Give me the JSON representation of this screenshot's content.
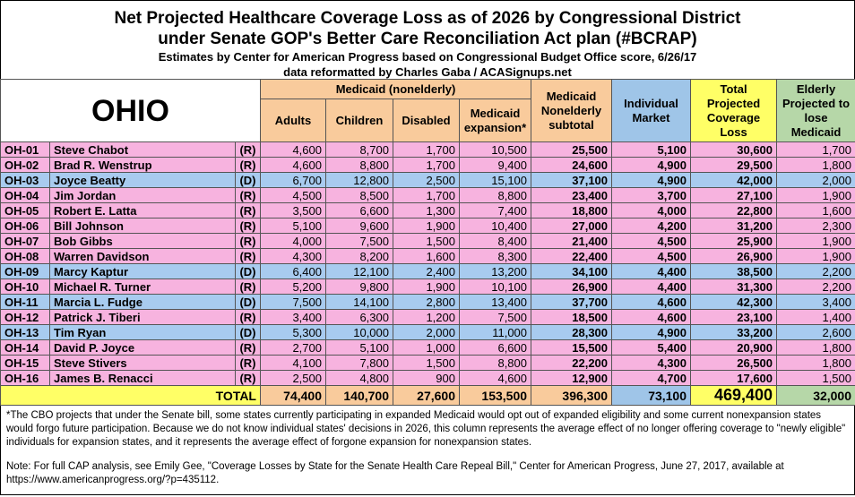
{
  "header": {
    "title_lines": [
      "Net Projected Healthcare Coverage Loss as of 2026 by Congressional District",
      "under Senate GOP's Better Care Reconciliation Act plan (#BCRAP)",
      "Estimates by Center for American Progress based on Congressional Budget Office score, 6/26/17",
      "data reformatted by Charles Gaba / ACASignups.net"
    ]
  },
  "table": {
    "state": "OHIO",
    "group": "Medicaid (nonelderly)",
    "columns": [
      "Adults",
      "Children",
      "Disabled",
      "Medicaid expansion*",
      "Medicaid Nonelderly subtotal",
      "Individual Market",
      "Total Projected Coverage Loss",
      "Elderly Projected to lose Medicaid"
    ],
    "column_colors": [
      "#f9cb9c",
      "#f9cb9c",
      "#f9cb9c",
      "#f9cb9c",
      "#f9cb9c",
      "#9fc5e8",
      "#ffff66",
      "#b6d7a8"
    ],
    "rows": [
      {
        "color": "#f7b3df",
        "cells": [
          "OH-01",
          "Steve Chabot",
          "(R)",
          "4,600",
          "8,700",
          "1,700",
          "10,500",
          "25,500",
          "5,100",
          "30,600",
          "1,700"
        ]
      },
      {
        "color": "#f7b3df",
        "cells": [
          "OH-02",
          "Brad R. Wenstrup",
          "(R)",
          "4,600",
          "8,800",
          "1,700",
          "9,400",
          "24,600",
          "4,900",
          "29,500",
          "1,800"
        ]
      },
      {
        "color": "#a8cbef",
        "cells": [
          "OH-03",
          "Joyce Beatty",
          "(D)",
          "6,700",
          "12,800",
          "2,500",
          "15,100",
          "37,100",
          "4,900",
          "42,000",
          "2,000"
        ]
      },
      {
        "color": "#f7b3df",
        "cells": [
          "OH-04",
          "Jim Jordan",
          "(R)",
          "4,500",
          "8,500",
          "1,700",
          "8,800",
          "23,400",
          "3,700",
          "27,100",
          "1,900"
        ]
      },
      {
        "color": "#f7b3df",
        "cells": [
          "OH-05",
          "Robert E. Latta",
          "(R)",
          "3,500",
          "6,600",
          "1,300",
          "7,400",
          "18,800",
          "4,000",
          "22,800",
          "1,600"
        ]
      },
      {
        "color": "#f7b3df",
        "cells": [
          "OH-06",
          "Bill Johnson",
          "(R)",
          "5,100",
          "9,600",
          "1,900",
          "10,400",
          "27,000",
          "4,200",
          "31,200",
          "2,300"
        ]
      },
      {
        "color": "#f7b3df",
        "cells": [
          "OH-07",
          "Bob Gibbs",
          "(R)",
          "4,000",
          "7,500",
          "1,500",
          "8,400",
          "21,400",
          "4,500",
          "25,900",
          "1,900"
        ]
      },
      {
        "color": "#f7b3df",
        "cells": [
          "OH-08",
          "Warren Davidson",
          "(R)",
          "4,300",
          "8,200",
          "1,600",
          "8,300",
          "22,400",
          "4,500",
          "26,900",
          "1,900"
        ]
      },
      {
        "color": "#a8cbef",
        "cells": [
          "OH-09",
          "Marcy Kaptur",
          "(D)",
          "6,400",
          "12,100",
          "2,400",
          "13,200",
          "34,100",
          "4,400",
          "38,500",
          "2,200"
        ]
      },
      {
        "color": "#f7b3df",
        "cells": [
          "OH-10",
          "Michael R. Turner",
          "(R)",
          "5,200",
          "9,800",
          "1,900",
          "10,100",
          "26,900",
          "4,400",
          "31,300",
          "2,200"
        ]
      },
      {
        "color": "#a8cbef",
        "cells": [
          "OH-11",
          "Marcia L. Fudge",
          "(D)",
          "7,500",
          "14,100",
          "2,800",
          "13,400",
          "37,700",
          "4,600",
          "42,300",
          "3,400"
        ]
      },
      {
        "color": "#f7b3df",
        "cells": [
          "OH-12",
          "Patrick J. Tiberi",
          "(R)",
          "3,400",
          "6,300",
          "1,200",
          "7,500",
          "18,500",
          "4,600",
          "23,100",
          "1,400"
        ]
      },
      {
        "color": "#a8cbef",
        "cells": [
          "OH-13",
          "Tim Ryan",
          "(D)",
          "5,300",
          "10,000",
          "2,000",
          "11,000",
          "28,300",
          "4,900",
          "33,200",
          "2,600"
        ]
      },
      {
        "color": "#f7b3df",
        "cells": [
          "OH-14",
          "David P. Joyce",
          "(R)",
          "2,700",
          "5,100",
          "1,000",
          "6,600",
          "15,500",
          "5,400",
          "20,900",
          "1,800"
        ]
      },
      {
        "color": "#f7b3df",
        "cells": [
          "OH-15",
          "Steve Stivers",
          "(R)",
          "4,100",
          "7,800",
          "1,500",
          "8,800",
          "22,200",
          "4,300",
          "26,500",
          "1,800"
        ]
      },
      {
        "color": "#f7b3df",
        "cells": [
          "OH-16",
          "James B. Renacci",
          "(R)",
          "2,500",
          "4,800",
          "900",
          "4,600",
          "12,900",
          "4,700",
          "17,600",
          "1,500"
        ]
      }
    ],
    "total": {
      "label": "TOTAL",
      "label_color": "#ffff66",
      "values": [
        "74,400",
        "140,700",
        "27,600",
        "153,500",
        "396,300",
        "73,100",
        "469,400",
        "32,000"
      ]
    }
  },
  "notes": [
    "*The CBO projects that under the Senate bill, some states currently participating in expanded Medicaid would opt out of expanded eligibility and some current nonexpansion states would forgo future participation. Because we do not know individual states' decisions in 2026, this column represents the average effect of no longer offering coverage to \"newly eligible\" individuals for expansion states, and it represents the average effect of forgone expansion for nonexpansion states.",
    "Note: For full CAP analysis, see Emily Gee, \"Coverage Losses by State for the Senate Health Care Repeal Bill,\" Center for American Progress, June 27, 2017, available at https://www.americanprogress.org/?p=435112."
  ]
}
